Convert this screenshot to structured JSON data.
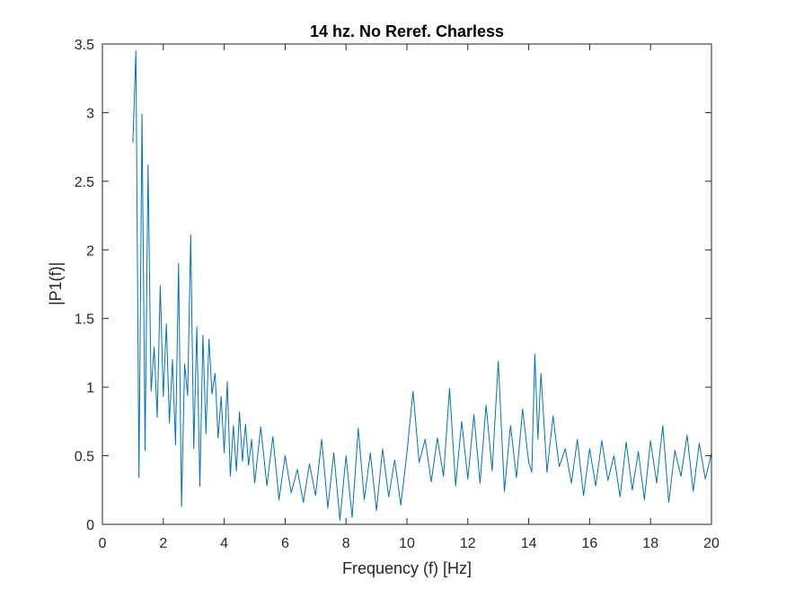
{
  "chart_data": {
    "type": "line",
    "title": "14 hz. No Reref. Charless",
    "xlabel": "Frequency (f) [Hz]",
    "ylabel": "|P1(f)|",
    "xlim": [
      0,
      20
    ],
    "ylim": [
      0,
      3.5
    ],
    "xticks": [
      "0",
      "2",
      "4",
      "6",
      "8",
      "10",
      "12",
      "14",
      "16",
      "18",
      "20"
    ],
    "yticks": [
      "0",
      "0.5",
      "1",
      "1.5",
      "2",
      "2.5",
      "3",
      "3.5"
    ],
    "grid": false,
    "line_color": "#0072BD",
    "series": [
      {
        "x": [
          1.0,
          1.1,
          1.2,
          1.3,
          1.4,
          1.5,
          1.6,
          1.7,
          1.8,
          1.9,
          2.0,
          2.1,
          2.2,
          2.3,
          2.4,
          2.5,
          2.6,
          2.7,
          2.8,
          2.9,
          3.0,
          3.1,
          3.2,
          3.3,
          3.4,
          3.5,
          3.6,
          3.7,
          3.8,
          3.9,
          4.0,
          4.1,
          4.2,
          4.3,
          4.4,
          4.5,
          4.6,
          4.7,
          4.8,
          4.9,
          5.0,
          5.2,
          5.4,
          5.6,
          5.8,
          6.0,
          6.2,
          6.4,
          6.6,
          6.8,
          7.0,
          7.2,
          7.4,
          7.6,
          7.8,
          8.0,
          8.2,
          8.4,
          8.6,
          8.8,
          9.0,
          9.2,
          9.4,
          9.6,
          9.8,
          10.0,
          10.2,
          10.4,
          10.6,
          10.8,
          11.0,
          11.2,
          11.4,
          11.6,
          11.8,
          12.0,
          12.2,
          12.4,
          12.6,
          12.8,
          13.0,
          13.2,
          13.4,
          13.6,
          13.8,
          14.0,
          14.1,
          14.2,
          14.3,
          14.4,
          14.6,
          14.8,
          15.0,
          15.2,
          15.4,
          15.6,
          15.8,
          16.0,
          16.2,
          16.4,
          16.6,
          16.8,
          17.0,
          17.2,
          17.4,
          17.6,
          17.8,
          18.0,
          18.2,
          18.4,
          18.6,
          18.8,
          19.0,
          19.2,
          19.4,
          19.6,
          19.8,
          20.0
        ],
        "y": [
          2.78,
          3.45,
          0.34,
          2.99,
          0.54,
          2.62,
          0.97,
          1.29,
          0.78,
          1.74,
          0.93,
          1.46,
          0.74,
          1.2,
          0.58,
          1.9,
          0.13,
          1.17,
          0.94,
          2.11,
          0.55,
          1.44,
          0.28,
          1.38,
          0.66,
          1.35,
          0.95,
          1.1,
          0.63,
          0.93,
          0.52,
          1.04,
          0.35,
          0.72,
          0.39,
          0.82,
          0.46,
          0.73,
          0.43,
          0.62,
          0.3,
          0.71,
          0.28,
          0.64,
          0.18,
          0.5,
          0.23,
          0.4,
          0.16,
          0.44,
          0.21,
          0.62,
          0.12,
          0.52,
          0.03,
          0.5,
          0.05,
          0.7,
          0.18,
          0.52,
          0.1,
          0.55,
          0.2,
          0.47,
          0.14,
          0.52,
          0.97,
          0.45,
          0.62,
          0.31,
          0.63,
          0.35,
          0.99,
          0.28,
          0.75,
          0.33,
          0.8,
          0.3,
          0.87,
          0.39,
          1.19,
          0.24,
          0.72,
          0.34,
          0.84,
          0.45,
          0.38,
          1.24,
          0.62,
          1.1,
          0.38,
          0.79,
          0.42,
          0.55,
          0.3,
          0.62,
          0.21,
          0.55,
          0.28,
          0.61,
          0.32,
          0.5,
          0.2,
          0.6,
          0.25,
          0.53,
          0.18,
          0.61,
          0.3,
          0.72,
          0.16,
          0.54,
          0.35,
          0.65,
          0.24,
          0.59,
          0.33,
          0.52
        ]
      }
    ]
  }
}
